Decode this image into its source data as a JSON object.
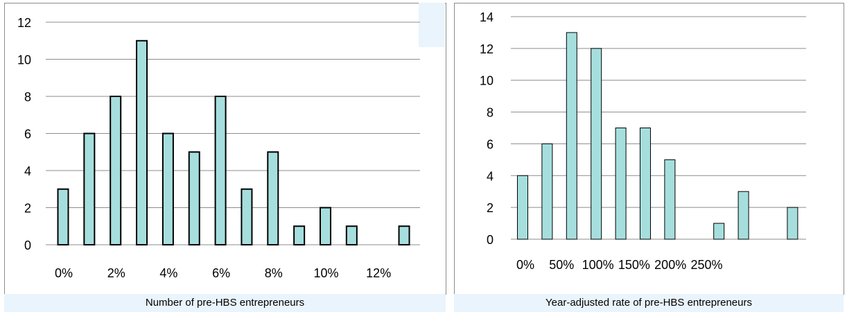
{
  "charts": [
    {
      "caption": "Number of pre-HBS entrepreneurs",
      "chart_data": {
        "type": "bar",
        "x": [
          0,
          1,
          2,
          3,
          4,
          5,
          6,
          7,
          8,
          9,
          10,
          11,
          12,
          13
        ],
        "values": [
          3,
          6,
          8,
          11,
          6,
          5,
          8,
          3,
          5,
          1,
          2,
          1,
          0,
          1
        ],
        "xlabel": "",
        "ylabel": "",
        "ylim": [
          0,
          12
        ],
        "yticks": [
          0,
          2,
          4,
          6,
          8,
          10,
          12
        ],
        "xtick_labels": [
          "0%",
          "2%",
          "4%",
          "6%",
          "8%",
          "10%",
          "12%"
        ],
        "gridlines": true,
        "bar_fill": "#a6dede",
        "bar_stroke": "#000000"
      }
    },
    {
      "caption": "Year-adjusted rate of pre-HBS entrepreneurs",
      "chart_data": {
        "type": "bar",
        "x": [
          0,
          25,
          50,
          75,
          100,
          125,
          150,
          175,
          200,
          225,
          250,
          275
        ],
        "values": [
          4,
          6,
          13,
          12,
          7,
          7,
          5,
          0,
          1,
          3,
          0,
          2
        ],
        "xlabel": "",
        "ylabel": "",
        "ylim": [
          0,
          14
        ],
        "yticks": [
          0,
          2,
          4,
          6,
          8,
          10,
          12,
          14
        ],
        "xtick_labels": [
          "0%",
          "50%",
          "100%",
          "150%",
          "200%",
          "250%"
        ],
        "gridlines": true,
        "bar_fill": "#a6dede",
        "bar_stroke": "#000000"
      }
    }
  ]
}
